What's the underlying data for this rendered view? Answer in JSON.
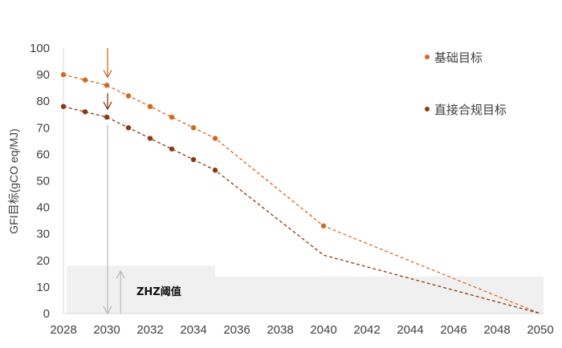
{
  "chart_data": {
    "type": "line",
    "title": "",
    "xlabel": "",
    "ylabel": "GFI目标(gCO eq/MJ)",
    "xlim": [
      2028,
      2050
    ],
    "ylim": [
      0,
      100
    ],
    "x_ticks": [
      "2028",
      "2030",
      "2032",
      "2034",
      "2036",
      "2038",
      "2040",
      "2042",
      "2044",
      "2046",
      "2048",
      "2050"
    ],
    "y_ticks": [
      "0",
      "10",
      "20",
      "30",
      "40",
      "50",
      "60",
      "70",
      "80",
      "90",
      "100"
    ],
    "grid": false,
    "legend_position": "upper right",
    "series": [
      {
        "name": "基础目标",
        "color": "#D2691E",
        "style": "dashed line with dot markers",
        "points": [
          [
            2028,
            90
          ],
          [
            2029,
            88
          ],
          [
            2030,
            86
          ],
          [
            2031,
            82
          ],
          [
            2032,
            78
          ],
          [
            2033,
            74
          ],
          [
            2034,
            70
          ],
          [
            2035,
            66
          ],
          [
            2040,
            33
          ],
          [
            2050,
            0
          ]
        ],
        "markers": [
          [
            2028,
            90
          ],
          [
            2029,
            88
          ],
          [
            2030,
            86
          ],
          [
            2031,
            82
          ],
          [
            2032,
            78
          ],
          [
            2033,
            74
          ],
          [
            2034,
            70
          ],
          [
            2035,
            66
          ],
          [
            2040,
            33
          ]
        ]
      },
      {
        "name": "直接合规目标",
        "color": "#8B3A0F",
        "style": "dashed line with dot markers",
        "points": [
          [
            2028,
            78
          ],
          [
            2029,
            76
          ],
          [
            2030,
            74
          ],
          [
            2031,
            70
          ],
          [
            2032,
            66
          ],
          [
            2033,
            62
          ],
          [
            2034,
            58
          ],
          [
            2035,
            54
          ],
          [
            2040,
            22
          ],
          [
            2050,
            0
          ]
        ],
        "markers": [
          [
            2028,
            78
          ],
          [
            2029,
            76
          ],
          [
            2030,
            74
          ],
          [
            2031,
            70
          ],
          [
            2032,
            66
          ],
          [
            2033,
            62
          ],
          [
            2034,
            58
          ],
          [
            2035,
            54
          ]
        ]
      }
    ],
    "shaded_regions": [
      {
        "label": "ZHZ阈值",
        "x": [
          2028,
          2035
        ],
        "y": [
          0,
          18
        ],
        "color": "#F0F0F0"
      },
      {
        "label": "ZHZ阈值",
        "x": [
          2035,
          2050
        ],
        "y": [
          0,
          14
        ],
        "color": "#F0F0F0"
      }
    ],
    "annotations": [
      {
        "text": "ZHZ阈值",
        "x": 2031.5,
        "y": 8
      },
      {
        "type": "arrow-down",
        "color": "#D2691E",
        "x": 2030,
        "from": 100,
        "to": 89
      },
      {
        "type": "arrow-down",
        "color": "#8B3A0F",
        "x": 2030,
        "from": 83,
        "to": 77
      },
      {
        "type": "arrow-down",
        "color": "#BBBBBB",
        "x": 2030,
        "from": 71,
        "to": 0
      },
      {
        "type": "arrow-up",
        "color": "#BBBBBB",
        "x": 2030.6,
        "from": 0,
        "to": 16
      }
    ]
  },
  "legend": {
    "items": [
      {
        "label": "基础目标",
        "color": "#D2691E"
      },
      {
        "label": "直接合规目标",
        "color": "#8B3A0F"
      }
    ]
  },
  "annotation_label": "ZHZ阈值"
}
